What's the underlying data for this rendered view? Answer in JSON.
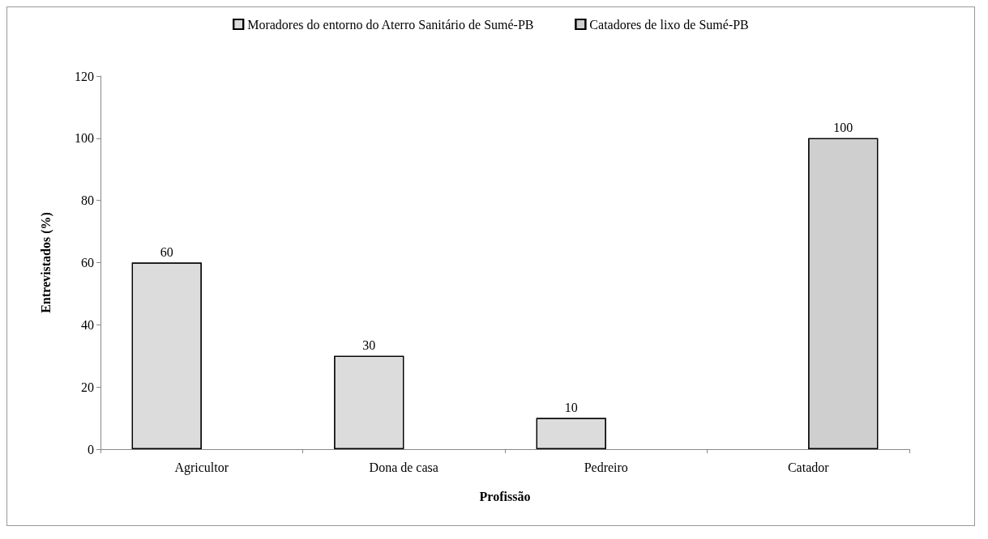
{
  "chart_data": {
    "type": "bar",
    "xlabel": "Profissão",
    "ylabel": "Entrevistados (%)",
    "categories": [
      "Agricultor",
      "Dona de casa",
      "Pedreiro",
      "Catador"
    ],
    "series": [
      {
        "name": "Moradores do entorno do Aterro Sanitário de Sumé-PB",
        "color": "#dcdcdc",
        "values": [
          60,
          30,
          10,
          null
        ]
      },
      {
        "name": "Catadores de lixo de Sumé-PB",
        "color": "#cfcfcf",
        "values": [
          null,
          null,
          null,
          100
        ]
      }
    ],
    "ylim": [
      0,
      120
    ],
    "yticks": [
      0,
      20,
      40,
      60,
      80,
      100,
      120
    ],
    "grid": false,
    "legend": "top",
    "data_labels": true
  }
}
